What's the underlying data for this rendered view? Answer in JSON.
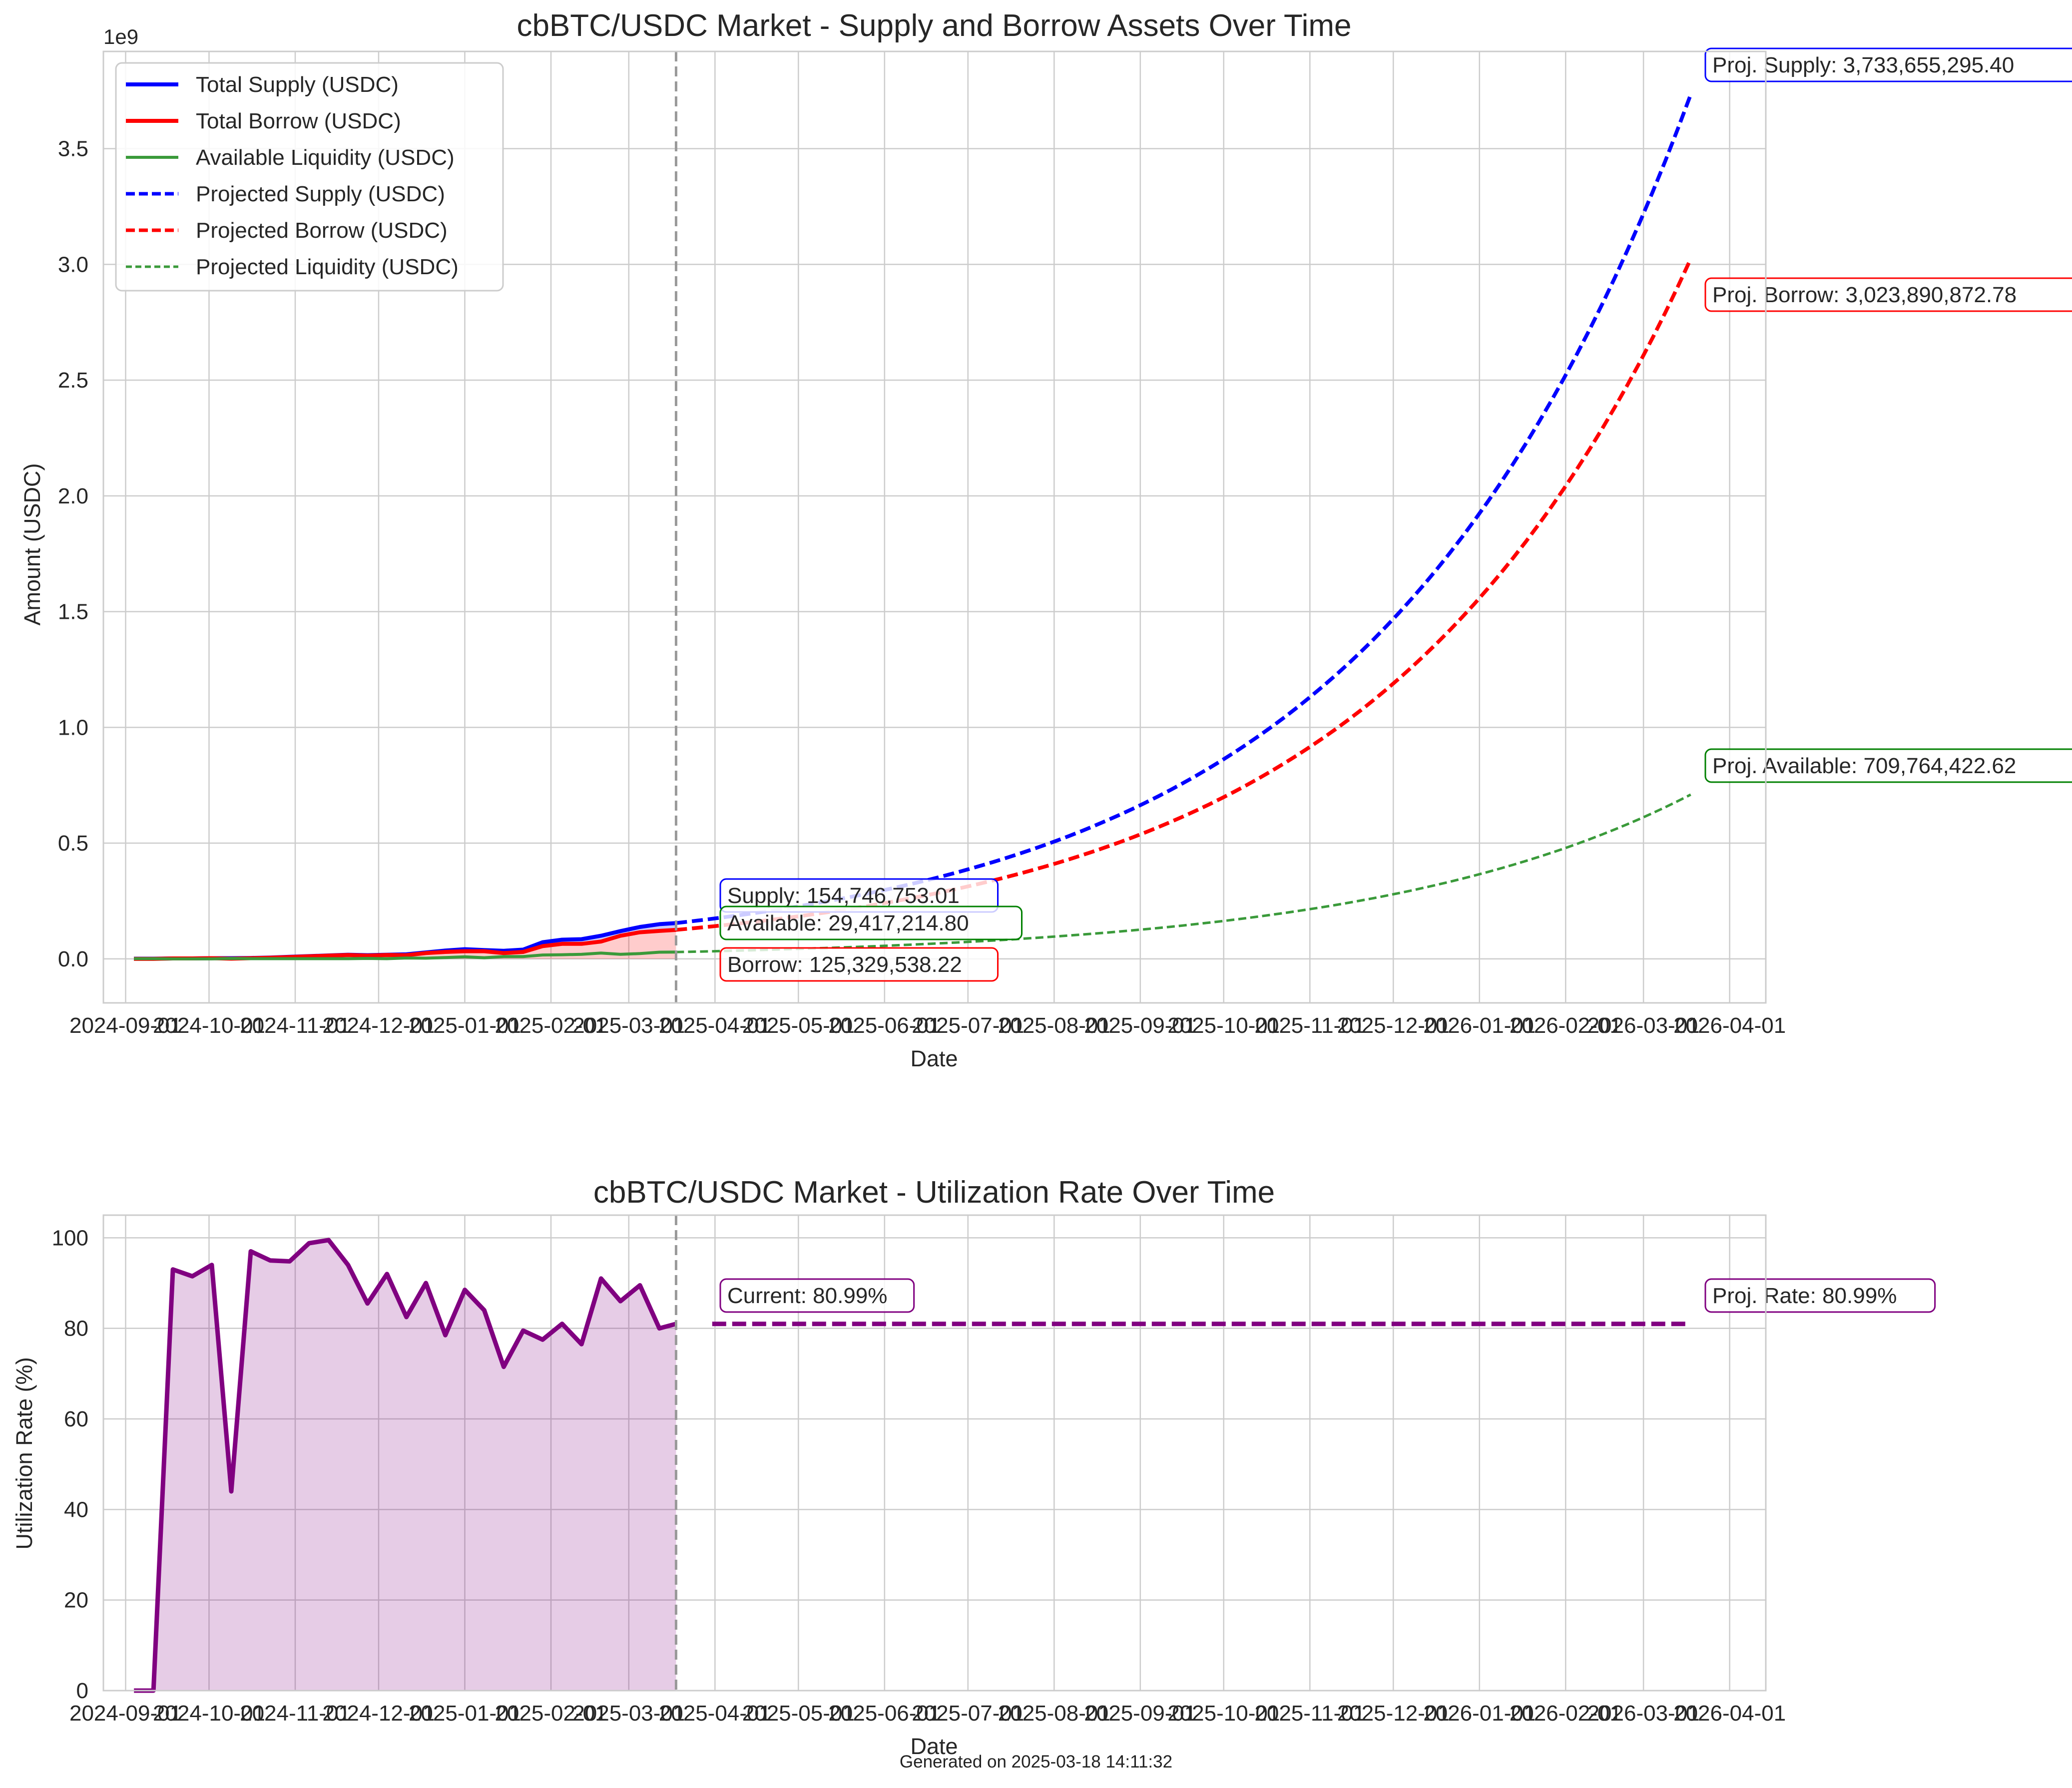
{
  "footer": "Generated on 2025-03-18 14:11:32",
  "colors": {
    "supply": "#0000ff",
    "borrow": "#ff0000",
    "liquidity": "#3a9a3a",
    "utilization": "#800080",
    "grid": "#cccccc",
    "divider": "#999999"
  },
  "chart_data": [
    {
      "type": "line",
      "title": "cbBTC/USDC Market - Supply and Borrow Assets Over Time",
      "xlabel": "Date",
      "ylabel": "Amount (USDC)",
      "y_offset_label": "1e9",
      "x_ticks": [
        "2024-09-01",
        "2024-10-01",
        "2024-11-01",
        "2024-12-01",
        "2025-01-01",
        "2025-02-01",
        "2025-03-01",
        "2025-04-01",
        "2025-05-01",
        "2025-06-01",
        "2025-07-01",
        "2025-08-01",
        "2025-09-01",
        "2025-10-01",
        "2025-11-01",
        "2025-12-01",
        "2026-01-01",
        "2026-02-01",
        "2026-03-01",
        "2026-04-01"
      ],
      "y_ticks": [
        "0.0",
        "0.5",
        "1.0",
        "1.5",
        "2.0",
        "2.5",
        "3.0",
        "3.5"
      ],
      "xlim": [
        "2024-08-24",
        "2026-04-14"
      ],
      "ylim": [
        -0.19,
        3.92
      ],
      "grid": true,
      "legend_position": "top-left",
      "divider_date": "2025-03-18",
      "x": [
        "2024-09-04",
        "2024-09-11",
        "2024-09-18",
        "2024-09-25",
        "2024-10-02",
        "2024-10-09",
        "2024-10-16",
        "2024-10-23",
        "2024-10-30",
        "2024-11-06",
        "2024-11-13",
        "2024-11-20",
        "2024-11-27",
        "2024-12-04",
        "2024-12-11",
        "2024-12-18",
        "2024-12-25",
        "2025-01-01",
        "2025-01-08",
        "2025-01-15",
        "2025-01-22",
        "2025-01-29",
        "2025-02-05",
        "2025-02-12",
        "2025-02-19",
        "2025-02-26",
        "2025-03-05",
        "2025-03-12",
        "2025-03-18"
      ],
      "series": [
        {
          "name": "Total Supply (USDC)",
          "style": "solid",
          "values": [
            0.001,
            0.001,
            0.002,
            0.002,
            0.003,
            0.003,
            0.004,
            0.006,
            0.009,
            0.012,
            0.015,
            0.018,
            0.016,
            0.018,
            0.02,
            0.028,
            0.036,
            0.042,
            0.038,
            0.035,
            0.04,
            0.072,
            0.083,
            0.085,
            0.1,
            0.12,
            0.138,
            0.15,
            0.1547
          ]
        },
        {
          "name": "Total Borrow (USDC)",
          "style": "solid",
          "values": [
            0.0,
            0.0,
            0.002,
            0.002,
            0.003,
            0.001,
            0.003,
            0.005,
            0.008,
            0.011,
            0.014,
            0.017,
            0.014,
            0.017,
            0.016,
            0.025,
            0.03,
            0.033,
            0.033,
            0.025,
            0.03,
            0.055,
            0.065,
            0.065,
            0.075,
            0.1,
            0.115,
            0.121,
            0.1253
          ]
        },
        {
          "name": "Available Liquidity (USDC)",
          "style": "solid",
          "values": [
            0.001,
            0.001,
            0.0,
            0.0,
            0.0,
            0.002,
            0.001,
            0.001,
            0.001,
            0.001,
            0.001,
            0.001,
            0.002,
            0.001,
            0.004,
            0.003,
            0.006,
            0.009,
            0.005,
            0.01,
            0.01,
            0.017,
            0.018,
            0.02,
            0.025,
            0.02,
            0.023,
            0.029,
            0.0294
          ]
        },
        {
          "name": "Projected Supply (USDC)",
          "style": "dashed",
          "start_date": "2025-03-18",
          "end_date": "2026-03-18",
          "start_value": 0.154746753,
          "end_value": 3.7336552954
        },
        {
          "name": "Projected Borrow (USDC)",
          "style": "dashed",
          "start_date": "2025-03-18",
          "end_date": "2026-03-18",
          "start_value": 0.125329538,
          "end_value": 3.0238908728
        },
        {
          "name": "Projected Liquidity (USDC)",
          "style": "dashed",
          "start_date": "2025-03-18",
          "end_date": "2026-03-18",
          "start_value": 0.029417215,
          "end_value": 0.7097644226
        }
      ],
      "annotations": [
        {
          "text": "Supply: 154,746,753.01",
          "color": "#0000ff"
        },
        {
          "text": "Available: 29,417,214.80",
          "color": "#008000"
        },
        {
          "text": "Borrow: 125,329,538.22",
          "color": "#ff0000"
        },
        {
          "text": "Proj. Supply: 3,733,655,295.40",
          "color": "#0000ff"
        },
        {
          "text": "Proj. Borrow: 3,023,890,872.78",
          "color": "#ff0000"
        },
        {
          "text": "Proj. Available: 709,764,422.62",
          "color": "#008000"
        }
      ]
    },
    {
      "type": "line",
      "title": "cbBTC/USDC Market - Utilization Rate Over Time",
      "xlabel": "Date",
      "ylabel": "Utilization Rate (%)",
      "x_ticks": [
        "2024-09-01",
        "2024-10-01",
        "2024-11-01",
        "2024-12-01",
        "2025-01-01",
        "2025-02-01",
        "2025-03-01",
        "2025-04-01",
        "2025-05-01",
        "2025-06-01",
        "2025-07-01",
        "2025-08-01",
        "2025-09-01",
        "2025-10-01",
        "2025-11-01",
        "2025-12-01",
        "2026-01-01",
        "2026-02-01",
        "2026-03-01",
        "2026-04-01"
      ],
      "y_ticks": [
        "0",
        "20",
        "40",
        "60",
        "80",
        "100"
      ],
      "xlim": [
        "2024-08-24",
        "2026-04-14"
      ],
      "ylim": [
        0,
        105
      ],
      "grid": true,
      "divider_date": "2025-03-18",
      "x": [
        "2024-09-04",
        "2024-09-11",
        "2024-09-18",
        "2024-09-25",
        "2024-10-02",
        "2024-10-09",
        "2024-10-16",
        "2024-10-23",
        "2024-10-30",
        "2024-11-06",
        "2024-11-13",
        "2024-11-20",
        "2024-11-27",
        "2024-12-04",
        "2024-12-11",
        "2024-12-18",
        "2024-12-25",
        "2025-01-01",
        "2025-01-08",
        "2025-01-15",
        "2025-01-22",
        "2025-01-29",
        "2025-02-05",
        "2025-02-12",
        "2025-02-19",
        "2025-02-26",
        "2025-03-05",
        "2025-03-12",
        "2025-03-18"
      ],
      "series": [
        {
          "name": "Utilization Rate",
          "style": "solid",
          "values": [
            0,
            0,
            93,
            91.5,
            94,
            44,
            97,
            95,
            94.8,
            98.8,
            99.5,
            94,
            85.5,
            92,
            82.5,
            90,
            78.5,
            88.5,
            84,
            71.5,
            79.5,
            77.5,
            81,
            76.5,
            91,
            86,
            89.5,
            80,
            80.99
          ]
        },
        {
          "name": "Projected Rate",
          "style": "dashed",
          "start_date": "2025-03-31",
          "end_date": "2026-03-18",
          "value": 80.99
        }
      ],
      "annotations": [
        {
          "text": "Current: 80.99%",
          "color": "#800080"
        },
        {
          "text": "Proj. Rate: 80.99%",
          "color": "#800080"
        }
      ]
    }
  ]
}
